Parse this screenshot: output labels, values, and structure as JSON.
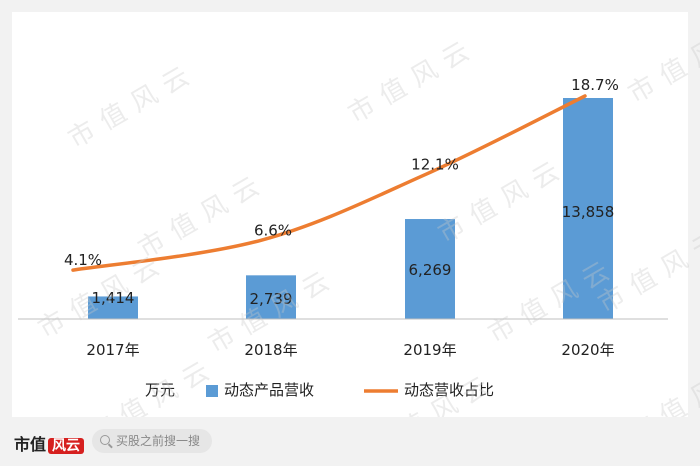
{
  "chart_data": {
    "type": "bar+line",
    "categories": [
      "2017年",
      "2018年",
      "2019年",
      "2020年"
    ],
    "series": [
      {
        "name": "动态产品营收",
        "type": "bar",
        "values": [
          1414,
          2739,
          6269,
          13858
        ],
        "labels": [
          "1,414",
          "2,739",
          "6,269",
          "13,858"
        ],
        "color": "#5b9bd5"
      },
      {
        "name": "动态营收占比",
        "type": "line",
        "values": [
          4.1,
          6.6,
          12.1,
          18.7
        ],
        "labels": [
          "4.1%",
          "6.6%",
          "12.1%",
          "18.7%"
        ],
        "color": "#ed7d31"
      }
    ],
    "unit_label": "万元",
    "bar_max": 13858,
    "line_range": [
      0,
      18.7
    ],
    "legend_position": "bottom"
  },
  "watermark": "市值风云",
  "footer": {
    "brand_text": "市值",
    "brand_logo_text": "风云",
    "search_placeholder": "买股之前搜一搜"
  }
}
